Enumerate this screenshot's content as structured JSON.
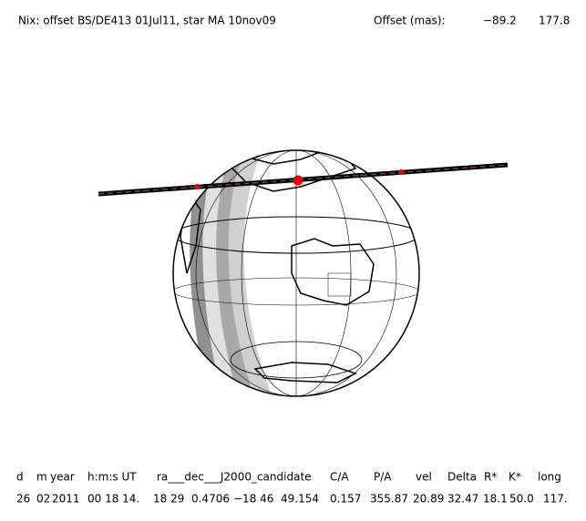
{
  "header": {
    "title": "Nix: offset BS/DE413 01Jul11, star MA 10nov09",
    "offset_label": "Offset (mas):",
    "offset_values": [
      "−89.2",
      "177.8"
    ]
  },
  "table": {
    "columns": [
      "d",
      "m",
      "year",
      "h:m:s UT",
      "ra___dec___J2000_candidate",
      "C/A",
      "P/A",
      "vel",
      "Delta",
      "R*",
      "K*",
      "long"
    ],
    "row": [
      "26",
      "02",
      "2011",
      "00 18 14.",
      "18 29  0.4706",
      "−18 46  49.154",
      "0.157",
      "355.87",
      "20.89",
      "32.47",
      "18.1",
      "50.0",
      "117."
    ]
  }
}
